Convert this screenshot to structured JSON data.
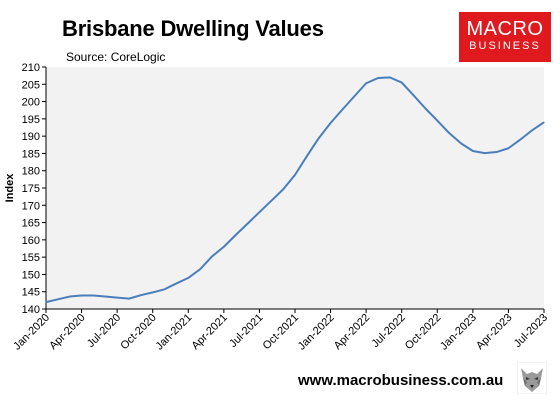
{
  "header": {
    "title": "Brisbane Dwelling Values",
    "source": "Source: CoreLogic"
  },
  "logo": {
    "line1": "MACRO",
    "line2": "BUSINESS",
    "color": "#e0191e"
  },
  "footer": {
    "url": "www.macrobusiness.com.au",
    "icon": "wolf-icon"
  },
  "chart_data": {
    "type": "line",
    "title": "Brisbane Dwelling Values",
    "subtitle": "Source: CoreLogic",
    "ylabel": "Index",
    "xlabel": "",
    "ylim": [
      140,
      210
    ],
    "yticks": [
      140,
      145,
      150,
      155,
      160,
      165,
      170,
      175,
      180,
      185,
      190,
      195,
      200,
      205,
      210
    ],
    "xticks": [
      "Jan-2020",
      "Apr-2020",
      "Jul-2020",
      "Oct-2020",
      "Jan-2021",
      "Apr-2021",
      "Jul-2021",
      "Oct-2021",
      "Jan-2022",
      "Apr-2022",
      "Jul-2022",
      "Oct-2022",
      "Jan-2023",
      "Apr-2023",
      "Jul-2023"
    ],
    "grid": false,
    "plot_background": "#f2f2f2",
    "line_color": "#4a7ebb",
    "series": [
      {
        "x": [
          "Jan-2020",
          "Feb-2020",
          "Mar-2020",
          "Apr-2020",
          "May-2020",
          "Jun-2020",
          "Jul-2020",
          "Aug-2020",
          "Sep-2020",
          "Oct-2020",
          "Nov-2020",
          "Dec-2020",
          "Jan-2021",
          "Feb-2021",
          "Mar-2021",
          "Apr-2021",
          "May-2021",
          "Jun-2021",
          "Jul-2021",
          "Aug-2021",
          "Sep-2021",
          "Oct-2021",
          "Nov-2021",
          "Dec-2021",
          "Jan-2022",
          "Feb-2022",
          "Mar-2022",
          "Apr-2022",
          "May-2022",
          "Jun-2022",
          "Jul-2022",
          "Aug-2022",
          "Sep-2022",
          "Oct-2022",
          "Nov-2022",
          "Dec-2022",
          "Jan-2023",
          "Feb-2023",
          "Mar-2023",
          "Apr-2023",
          "May-2023",
          "Jun-2023",
          "Jul-2023"
        ],
        "values": [
          142.0,
          142.8,
          143.6,
          143.9,
          143.9,
          143.6,
          143.3,
          143.0,
          144.0,
          144.8,
          145.7,
          147.4,
          149.0,
          151.5,
          155.2,
          158.0,
          161.4,
          164.7,
          168.0,
          171.3,
          174.6,
          178.8,
          184.2,
          189.4,
          193.8,
          197.7,
          201.5,
          205.3,
          206.8,
          207.0,
          205.5,
          201.8,
          198.0,
          194.5,
          190.9,
          187.9,
          185.7,
          185.1,
          185.4,
          186.5,
          189.0,
          191.7,
          194.0
        ]
      }
    ]
  }
}
